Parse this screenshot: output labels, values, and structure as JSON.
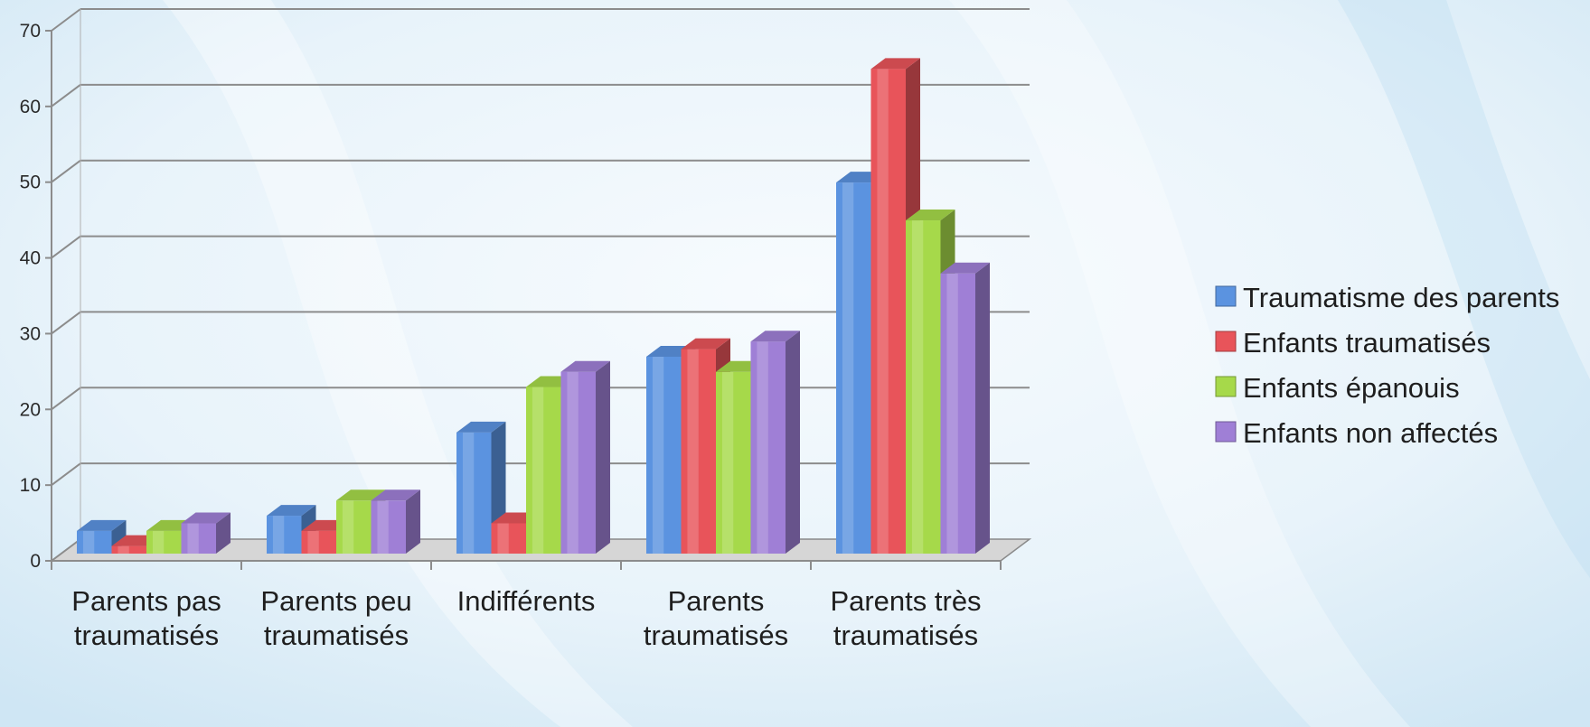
{
  "chart_data": {
    "type": "bar",
    "title": "",
    "xlabel": "",
    "ylabel": "",
    "ylim": [
      0,
      70
    ],
    "yticks": [
      0,
      10,
      20,
      30,
      40,
      50,
      60,
      70
    ],
    "grid": true,
    "legend_position": "right",
    "categories": [
      [
        "Parents pas",
        "traumatisés"
      ],
      [
        "Parents peu",
        "traumatisés"
      ],
      [
        "Indifférents"
      ],
      [
        "Parents",
        "traumatisés"
      ],
      [
        "Parents très",
        "traumatisés"
      ]
    ],
    "series": [
      {
        "name": "Traumatisme des parents",
        "values": [
          3,
          5,
          16,
          26,
          49
        ],
        "color": "#5b93e0"
      },
      {
        "name": "Enfants traumatisés",
        "values": [
          1,
          3,
          4,
          27,
          64
        ],
        "color": "#e8545a"
      },
      {
        "name": "Enfants épanouis",
        "values": [
          3,
          7,
          22,
          24,
          44
        ],
        "color": "#a6d94a"
      },
      {
        "name": "Enfants non affectés",
        "values": [
          4,
          7,
          24,
          28,
          37
        ],
        "color": "#9f7fd6"
      }
    ]
  }
}
